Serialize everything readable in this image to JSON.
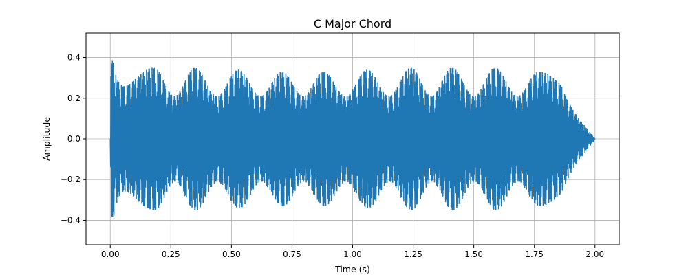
{
  "chart_data": {
    "type": "line",
    "title": "C Major Chord",
    "xlabel": "Time (s)",
    "ylabel": "Amplitude",
    "xlim": [
      -0.1,
      2.1
    ],
    "ylim": [
      -0.52,
      0.52
    ],
    "x_ticks": [
      0.0,
      0.25,
      0.5,
      0.75,
      1.0,
      1.25,
      1.5,
      1.75,
      2.0
    ],
    "x_tick_labels": [
      "0.00",
      "0.25",
      "0.50",
      "0.75",
      "1.00",
      "1.25",
      "1.50",
      "1.75",
      "2.00"
    ],
    "y_ticks": [
      -0.4,
      -0.2,
      0.0,
      0.2,
      0.4
    ],
    "y_tick_labels": [
      "−0.4",
      "−0.2",
      "0.0",
      "0.2",
      "0.4"
    ],
    "grid": true,
    "series": [
      {
        "color": "#1f77b4",
        "x_range": [
          0.0,
          2.0
        ],
        "attack_peak": 0.47,
        "beat_peaks": [
          {
            "x": 0.18,
            "value": 0.35
          },
          {
            "x": 0.35,
            "value": 0.35
          },
          {
            "x": 0.53,
            "value": 0.34
          },
          {
            "x": 0.71,
            "value": 0.33
          },
          {
            "x": 0.88,
            "value": 0.33
          },
          {
            "x": 1.06,
            "value": 0.34
          },
          {
            "x": 1.24,
            "value": 0.35
          },
          {
            "x": 1.41,
            "value": 0.35
          },
          {
            "x": 1.59,
            "value": 0.35
          },
          {
            "x": 1.77,
            "value": 0.33
          }
        ],
        "beat_trough_value": 0.21
      }
    ]
  }
}
